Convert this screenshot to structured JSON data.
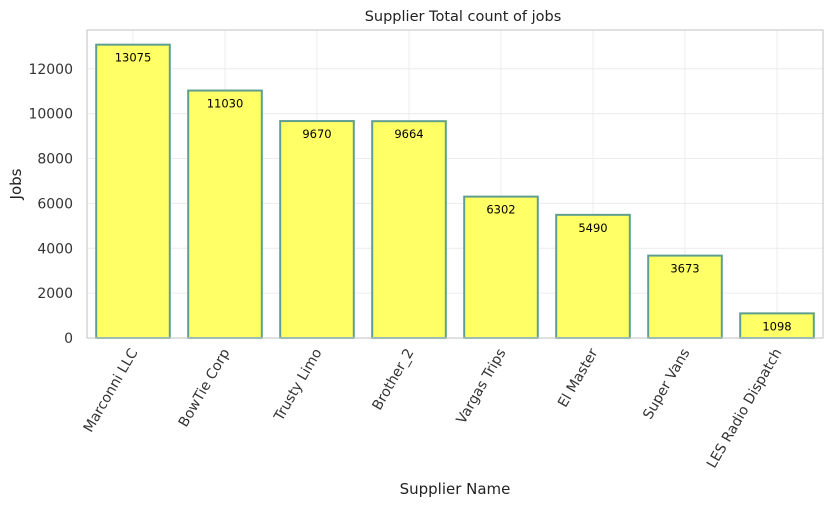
{
  "chart_data": {
    "type": "bar",
    "title": "Supplier Total count of jobs",
    "xlabel": "Supplier Name",
    "ylabel": "Jobs",
    "categories": [
      "Marconni LLC",
      "BowTie Corp",
      "Trusty Limo",
      "Brother_2",
      "Vargas Trips",
      "El Master",
      "Super Vans",
      "LES Radio Dispatch"
    ],
    "values": [
      13075,
      11030,
      9670,
      9664,
      6302,
      5490,
      3673,
      1098
    ],
    "yticks": [
      0,
      2000,
      4000,
      6000,
      8000,
      10000,
      12000
    ],
    "ylim": [
      0,
      13729
    ],
    "grid": true,
    "bar_color": "#ffff66",
    "bar_edge_color": "#5f9e8f"
  }
}
